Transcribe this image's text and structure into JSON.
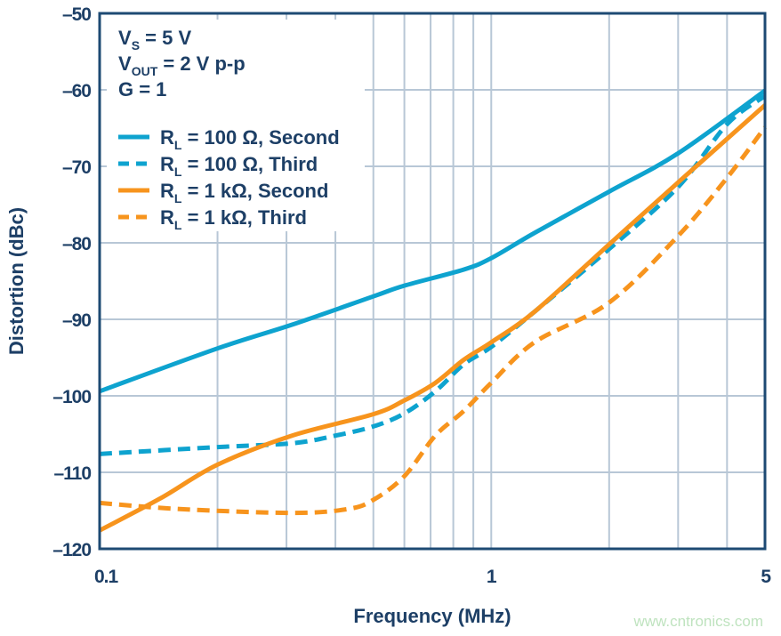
{
  "chart_data": {
    "type": "line",
    "xlabel": "Frequency (MHz)",
    "ylabel": "Distortion (dBc)",
    "xscale": "log",
    "xlim": [
      0.1,
      5
    ],
    "ylim": [
      -120,
      -50
    ],
    "xticks": [
      0.1,
      1,
      5
    ],
    "xtick_labels": [
      "0.1",
      "1",
      "5"
    ],
    "yticks": [
      -50,
      -60,
      -70,
      -80,
      -90,
      -100,
      -110,
      -120
    ],
    "ytick_labels": [
      "–50",
      "–60",
      "–70",
      "–80",
      "–90",
      "–100",
      "–110",
      "–120"
    ],
    "grid": true,
    "legend_placement": "top-left",
    "conditions": [
      {
        "main": "V",
        "sub": "S",
        "rest": " = 5 V"
      },
      {
        "main": "V",
        "sub": "OUT",
        "rest": " = 2 V p-p"
      },
      {
        "main": "G = 1",
        "sub": "",
        "rest": ""
      }
    ],
    "series": [
      {
        "name": "R_L = 100 Ω, Second",
        "legend": {
          "main": "R",
          "sub": "L",
          "rest": " = 100 Ω, Second"
        },
        "color": "#0ea3cf",
        "dash": false,
        "x": [
          0.1,
          0.2,
          0.31,
          0.5,
          0.6,
          0.85,
          1,
          1.29,
          2,
          3,
          5
        ],
        "y": [
          -99.4,
          -93.8,
          -90.7,
          -87,
          -85.6,
          -83.5,
          -82,
          -78.7,
          -73.3,
          -68.3,
          -60.1
        ]
      },
      {
        "name": "R_L = 100 Ω, Third",
        "legend": {
          "main": "R",
          "sub": "L",
          "rest": " = 100 Ω, Third"
        },
        "color": "#0ea3cf",
        "dash": true,
        "x": [
          0.1,
          0.2,
          0.31,
          0.4,
          0.5,
          0.6,
          0.72,
          0.85,
          1,
          1.29,
          2,
          3,
          4,
          5
        ],
        "y": [
          -107.6,
          -106.7,
          -106.2,
          -105.2,
          -104,
          -102.3,
          -99.4,
          -95.9,
          -93.6,
          -89,
          -80.8,
          -72.7,
          -64.5,
          -60.8
        ]
      },
      {
        "name": "R_L = 1 kΩ, Second",
        "legend": {
          "main": "R",
          "sub": "L",
          "rest": " = 1 kΩ, Second"
        },
        "color": "#f7941d",
        "dash": false,
        "x": [
          0.1,
          0.143,
          0.2,
          0.31,
          0.5,
          0.6,
          0.72,
          0.85,
          1,
          1.29,
          2,
          3,
          5
        ],
        "y": [
          -117.6,
          -113.4,
          -109,
          -105.2,
          -102.4,
          -100.6,
          -98.3,
          -95.3,
          -93,
          -89,
          -80.2,
          -72.1,
          -62
        ]
      },
      {
        "name": "R_L = 1 kΩ, Third",
        "legend": {
          "main": "R",
          "sub": "L",
          "rest": " = 1 kΩ, Third"
        },
        "color": "#f7941d",
        "dash": true,
        "x": [
          0.1,
          0.16,
          0.31,
          0.43,
          0.5,
          0.6,
          0.72,
          0.85,
          1,
          1.29,
          2,
          3,
          4,
          5
        ],
        "y": [
          -114,
          -114.8,
          -115.3,
          -114.8,
          -113.6,
          -110.5,
          -105.2,
          -102,
          -98.3,
          -93,
          -87.8,
          -79.1,
          -71.5,
          -64.9
        ]
      }
    ]
  },
  "watermark": "www.cntronics.com",
  "colors": {
    "axis": "#1d4a73",
    "grid": "#b8c7d6",
    "text": "#1d3f66"
  }
}
